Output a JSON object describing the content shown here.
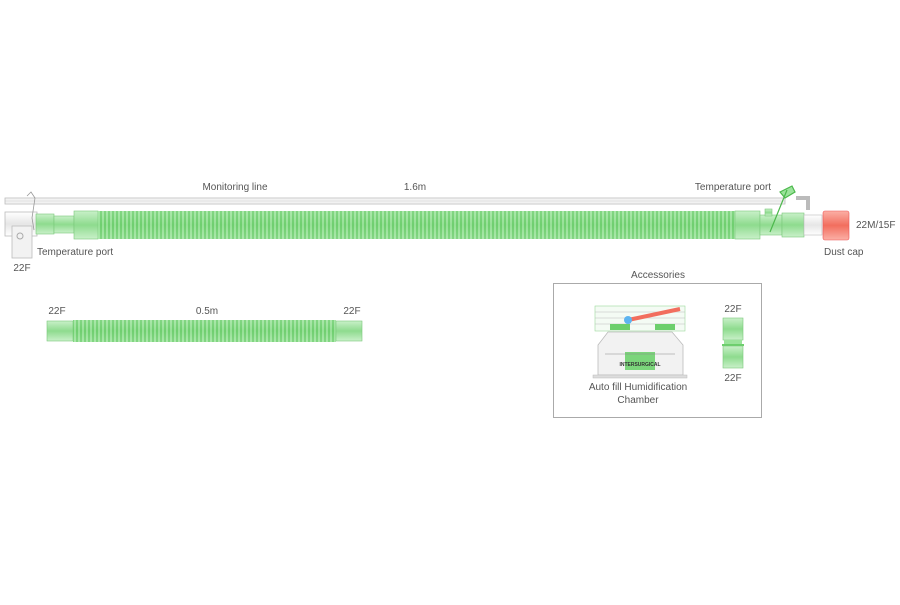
{
  "main_circuit": {
    "monitoring_line_label": "Monitoring line",
    "length_label": "1.6m",
    "temperature_port_right": "Temperature port",
    "temperature_port_left": "Temperature port",
    "left_connector": "22F",
    "right_connector": "22M/15F",
    "dust_cap": "Dust cap"
  },
  "extension_tube": {
    "left_connector": "22F",
    "length_label": "0.5m",
    "right_connector": "22F"
  },
  "accessories": {
    "title": "Accessories",
    "chamber_label_line1": "Auto fill Humidification",
    "chamber_label_line2": "Chamber",
    "connector_top": "22F",
    "connector_bottom": "22F",
    "chamber_brand": "INTERSURGICAL"
  },
  "colors": {
    "tube_green": "#8fdc8f",
    "dust_cap": "#f47a6a",
    "outline": "#bbbbbb"
  }
}
